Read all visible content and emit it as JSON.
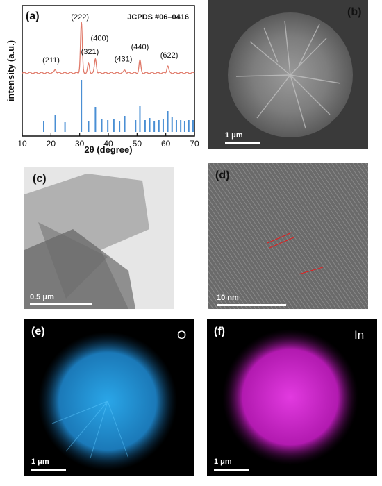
{
  "panels": {
    "a": {
      "label": "(a)"
    },
    "b": {
      "label": "(b)",
      "scale": "1 μm"
    },
    "c": {
      "label": "(c)",
      "scale": "0.5 μm"
    },
    "d": {
      "label": "(d)",
      "scale": "10 nm"
    },
    "e": {
      "label": "(e)",
      "element": "O",
      "scale": "1 μm"
    },
    "f": {
      "label": "(f)",
      "element": "In",
      "scale": "1 μm"
    }
  },
  "chart_data": {
    "type": "line",
    "xlabel": "2θ (degree)",
    "ylabel": "intensity (a.u.)",
    "xlim": [
      10,
      70
    ],
    "xticks": [
      10,
      20,
      30,
      40,
      50,
      60,
      70
    ],
    "reference_label": "JCPDS #06–0416",
    "peaks": [
      {
        "hkl": "(211)",
        "x": 21.5,
        "h": 0.07
      },
      {
        "hkl": "(222)",
        "x": 30.6,
        "h": 1.0
      },
      {
        "hkl": "(321)",
        "x": 33.1,
        "h": 0.18
      },
      {
        "hkl": "(400)",
        "x": 35.5,
        "h": 0.28
      },
      {
        "hkl": "(431)",
        "x": 45.7,
        "h": 0.06
      },
      {
        "hkl": "(440)",
        "x": 51.0,
        "h": 0.25
      },
      {
        "hkl": "(622)",
        "x": 60.7,
        "h": 0.14
      }
    ],
    "reference_sticks": [
      {
        "x": 17.5,
        "h": 0.15
      },
      {
        "x": 21.5,
        "h": 0.24
      },
      {
        "x": 24.9,
        "h": 0.14
      },
      {
        "x": 30.6,
        "h": 0.75
      },
      {
        "x": 33.1,
        "h": 0.16
      },
      {
        "x": 35.5,
        "h": 0.36
      },
      {
        "x": 37.7,
        "h": 0.19
      },
      {
        "x": 39.8,
        "h": 0.17
      },
      {
        "x": 41.9,
        "h": 0.19
      },
      {
        "x": 43.9,
        "h": 0.15
      },
      {
        "x": 45.7,
        "h": 0.23
      },
      {
        "x": 49.5,
        "h": 0.17
      },
      {
        "x": 51.0,
        "h": 0.38
      },
      {
        "x": 52.8,
        "h": 0.17
      },
      {
        "x": 54.4,
        "h": 0.2
      },
      {
        "x": 56.0,
        "h": 0.16
      },
      {
        "x": 57.6,
        "h": 0.17
      },
      {
        "x": 59.1,
        "h": 0.19
      },
      {
        "x": 60.7,
        "h": 0.3
      },
      {
        "x": 62.2,
        "h": 0.22
      },
      {
        "x": 63.7,
        "h": 0.17
      },
      {
        "x": 65.2,
        "h": 0.17
      },
      {
        "x": 66.6,
        "h": 0.16
      },
      {
        "x": 68.0,
        "h": 0.17
      },
      {
        "x": 69.5,
        "h": 0.17
      }
    ],
    "colors": {
      "xrd": "#e07a6a",
      "reference": "#4a8fd4"
    }
  }
}
